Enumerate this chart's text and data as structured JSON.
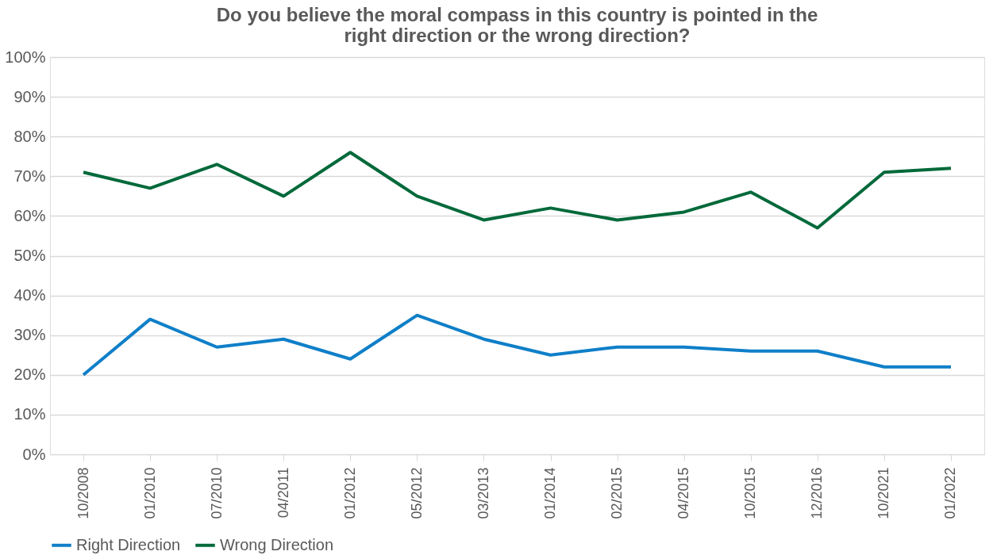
{
  "chart_data": {
    "type": "line",
    "title": [
      "Do you believe the moral compass in this country is pointed in the",
      "right direction or the wrong direction?"
    ],
    "categories": [
      "10/2008",
      "01/2010",
      "07/2010",
      "04/2011",
      "01/2012",
      "05/2012",
      "03/2013",
      "01/2014",
      "02/2015",
      "04/2015",
      "10/2015",
      "12/2016",
      "10/2021",
      "01/2022"
    ],
    "series": [
      {
        "name": "Right Direction",
        "color": "#0f7fc8",
        "values": [
          20,
          34,
          27,
          29,
          24,
          35,
          29,
          25,
          27,
          27,
          26,
          26,
          22,
          22
        ]
      },
      {
        "name": "Wrong Direction",
        "color": "#00693a",
        "values": [
          71,
          67,
          73,
          65,
          76,
          65,
          59,
          62,
          59,
          61,
          66,
          57,
          71,
          72
        ]
      }
    ],
    "ylim": [
      0,
      100
    ],
    "yticks": [
      {
        "value": 0,
        "label": "0%"
      },
      {
        "value": 10,
        "label": "10%"
      },
      {
        "value": 20,
        "label": "20%"
      },
      {
        "value": 30,
        "label": "30%"
      },
      {
        "value": 40,
        "label": "40%"
      },
      {
        "value": 50,
        "label": "50%"
      },
      {
        "value": 60,
        "label": "60%"
      },
      {
        "value": 70,
        "label": "70%"
      },
      {
        "value": 80,
        "label": "80%"
      },
      {
        "value": 90,
        "label": "90%"
      },
      {
        "value": 100,
        "label": "100%"
      }
    ],
    "grid": "y",
    "legend": "bottom",
    "marker": "none",
    "line_style": "solid"
  }
}
